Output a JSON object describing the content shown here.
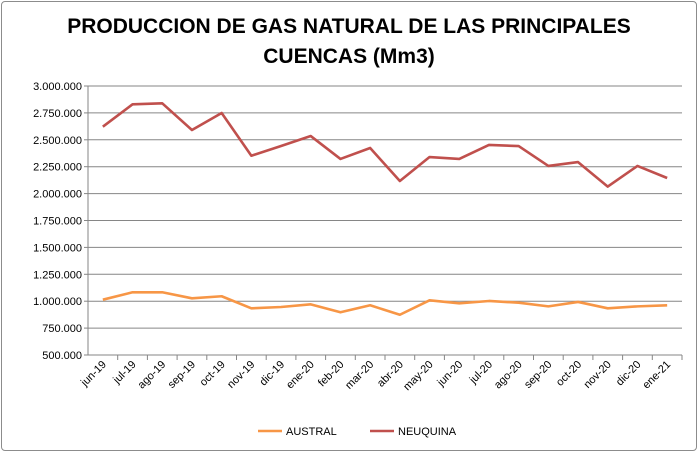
{
  "chart_data": {
    "type": "line",
    "title_lines": [
      "PRODUCCION DE GAS NATURAL DE LAS PRINCIPALES",
      "CUENCAS (Mm3)"
    ],
    "xlabel": "",
    "ylabel": "",
    "ylim": [
      500000,
      3000000
    ],
    "yticks": [
      500000,
      750000,
      1000000,
      1250000,
      1500000,
      1750000,
      2000000,
      2250000,
      2500000,
      2750000,
      3000000
    ],
    "ytick_labels": [
      "500.000",
      "750.000",
      "1.000.000",
      "1.250.000",
      "1.500.000",
      "1.750.000",
      "2.000.000",
      "2.250.000",
      "2.500.000",
      "2.750.000",
      "3.000.000"
    ],
    "grid": true,
    "legend_position": "bottom",
    "categories": [
      "jun-19",
      "jul-19",
      "ago-19",
      "sep-19",
      "oct-19",
      "nov-19",
      "dic-19",
      "ene-20",
      "feb-20",
      "mar-20",
      "abr-20",
      "may-20",
      "jun-20",
      "jul-20",
      "ago-20",
      "sep-20",
      "oct-20",
      "nov-20",
      "dic-20",
      "ene-21"
    ],
    "series": [
      {
        "name": "AUSTRAL",
        "color": "#f79646",
        "values": [
          1014000,
          1083000,
          1083000,
          1027000,
          1046000,
          934000,
          946000,
          971000,
          897000,
          962000,
          874000,
          1008000,
          980000,
          1002000,
          986000,
          952000,
          993000,
          934000,
          952000,
          962000
        ]
      },
      {
        "name": "NEUQUINA",
        "color": "#c0504d",
        "values": [
          2622000,
          2830000,
          2839000,
          2591000,
          2749000,
          2352000,
          2442000,
          2535000,
          2322000,
          2424000,
          2117000,
          2340000,
          2322000,
          2452000,
          2442000,
          2257000,
          2293000,
          2065000,
          2257000,
          2145000
        ]
      }
    ]
  }
}
